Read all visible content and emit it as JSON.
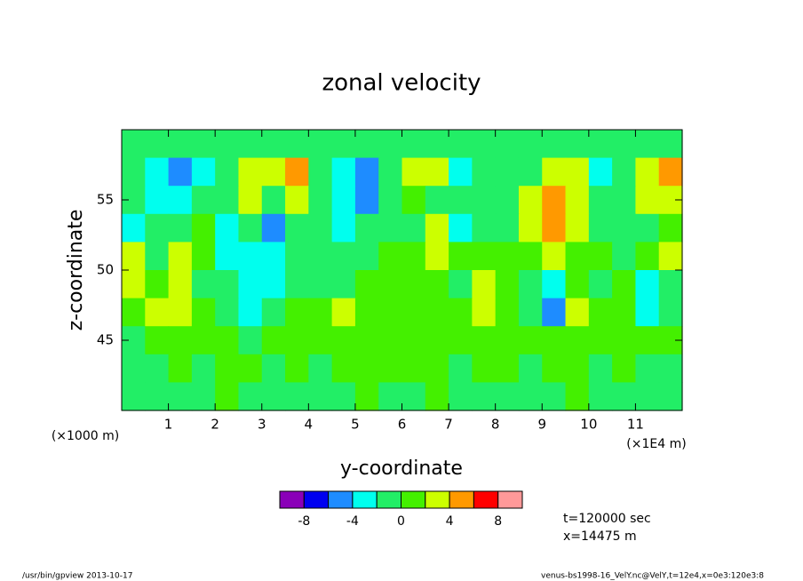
{
  "chart_data": {
    "type": "contour",
    "title": "zonal velocity",
    "x_label": "y-coordinate",
    "y_label": "z-coordinate",
    "x_unit": "(×1E4 m)",
    "y_unit": "(×1000 m)",
    "xlim": [
      0,
      12
    ],
    "ylim": [
      40,
      60
    ],
    "xticks": [
      1,
      2,
      3,
      4,
      5,
      6,
      7,
      8,
      9,
      10,
      11
    ],
    "yticks": [
      45,
      50,
      55
    ],
    "x": [
      0.25,
      0.75,
      1.25,
      1.75,
      2.25,
      2.75,
      3.25,
      3.75,
      4.25,
      4.75,
      5.25,
      5.75,
      6.25,
      6.75,
      7.25,
      7.75,
      8.25,
      8.75,
      9.25,
      9.75,
      10.25,
      10.75,
      11.25,
      11.75
    ],
    "y": [
      59,
      57,
      55,
      53,
      51,
      49,
      47,
      45,
      43,
      41
    ],
    "z": [
      [
        -1,
        -1,
        -1,
        -1,
        -1,
        -1,
        -1,
        -1,
        -1,
        -1,
        -1,
        -1,
        -1,
        -1,
        -1,
        -1,
        -1,
        -1,
        -1,
        -1,
        -1,
        -1,
        -1,
        -1
      ],
      [
        -1,
        -3,
        -5,
        -3,
        -1,
        3,
        3,
        5,
        -1,
        -3,
        -5,
        -1,
        3,
        3,
        -3,
        -1,
        -1,
        -1,
        3,
        3,
        -3,
        -1,
        3,
        5
      ],
      [
        -1,
        -3,
        -3,
        -1,
        -1,
        3,
        -1,
        3,
        -1,
        -3,
        -5,
        -1,
        1,
        -1,
        -1,
        -1,
        -1,
        3,
        5,
        3,
        -1,
        -1,
        3,
        3
      ],
      [
        -3,
        -1,
        -1,
        1,
        -3,
        -1,
        -5,
        -1,
        -1,
        -3,
        -1,
        -1,
        -1,
        3,
        -3,
        -1,
        -1,
        3,
        5,
        3,
        -1,
        -1,
        -1,
        1
      ],
      [
        3,
        -1,
        3,
        1,
        -3,
        -3,
        -3,
        -1,
        -1,
        -1,
        -1,
        1,
        1,
        3,
        1,
        1,
        1,
        1,
        3,
        1,
        1,
        -1,
        1,
        3
      ],
      [
        3,
        1,
        3,
        -1,
        -1,
        -3,
        -3,
        -1,
        -1,
        -1,
        1,
        1,
        1,
        1,
        -1,
        3,
        1,
        -1,
        -3,
        1,
        -1,
        1,
        -3,
        -1
      ],
      [
        1,
        3,
        3,
        1,
        -1,
        -3,
        -1,
        1,
        1,
        3,
        1,
        1,
        1,
        1,
        1,
        3,
        1,
        -1,
        -5,
        3,
        1,
        1,
        -3,
        -1
      ],
      [
        -1,
        1,
        1,
        1,
        1,
        -1,
        1,
        1,
        1,
        1,
        1,
        1,
        1,
        1,
        1,
        1,
        1,
        1,
        1,
        1,
        1,
        1,
        1,
        1
      ],
      [
        -1,
        -1,
        1,
        -1,
        1,
        1,
        -1,
        1,
        -1,
        1,
        1,
        1,
        1,
        1,
        -1,
        1,
        1,
        -1,
        1,
        1,
        -1,
        1,
        -1,
        -1
      ],
      [
        -1,
        -1,
        -1,
        -1,
        1,
        -1,
        -1,
        -1,
        -1,
        -1,
        1,
        -1,
        -1,
        1,
        -1,
        -1,
        -1,
        -1,
        -1,
        1,
        -1,
        -1,
        -1,
        -1
      ]
    ],
    "levels": [
      -10,
      -8,
      -6,
      -4,
      -2,
      0,
      2,
      4,
      6,
      8,
      10
    ],
    "colors": [
      "#8a00b8",
      "#0000f0",
      "#1e8cff",
      "#00ffee",
      "#22ee66",
      "#44f000",
      "#ccff00",
      "#ff9900",
      "#ff0000",
      "#ff9999"
    ],
    "colorbar_ticks": [
      -8,
      -4,
      0,
      4,
      8
    ],
    "annotations": [
      "t=120000 sec",
      "x=14475 m"
    ],
    "footer_left": "/usr/bin/gpview  2013-10-17",
    "footer_right": "venus-bs1998-16_VelY.nc@VelY,t=12e4,x=0e3:120e3:8"
  }
}
